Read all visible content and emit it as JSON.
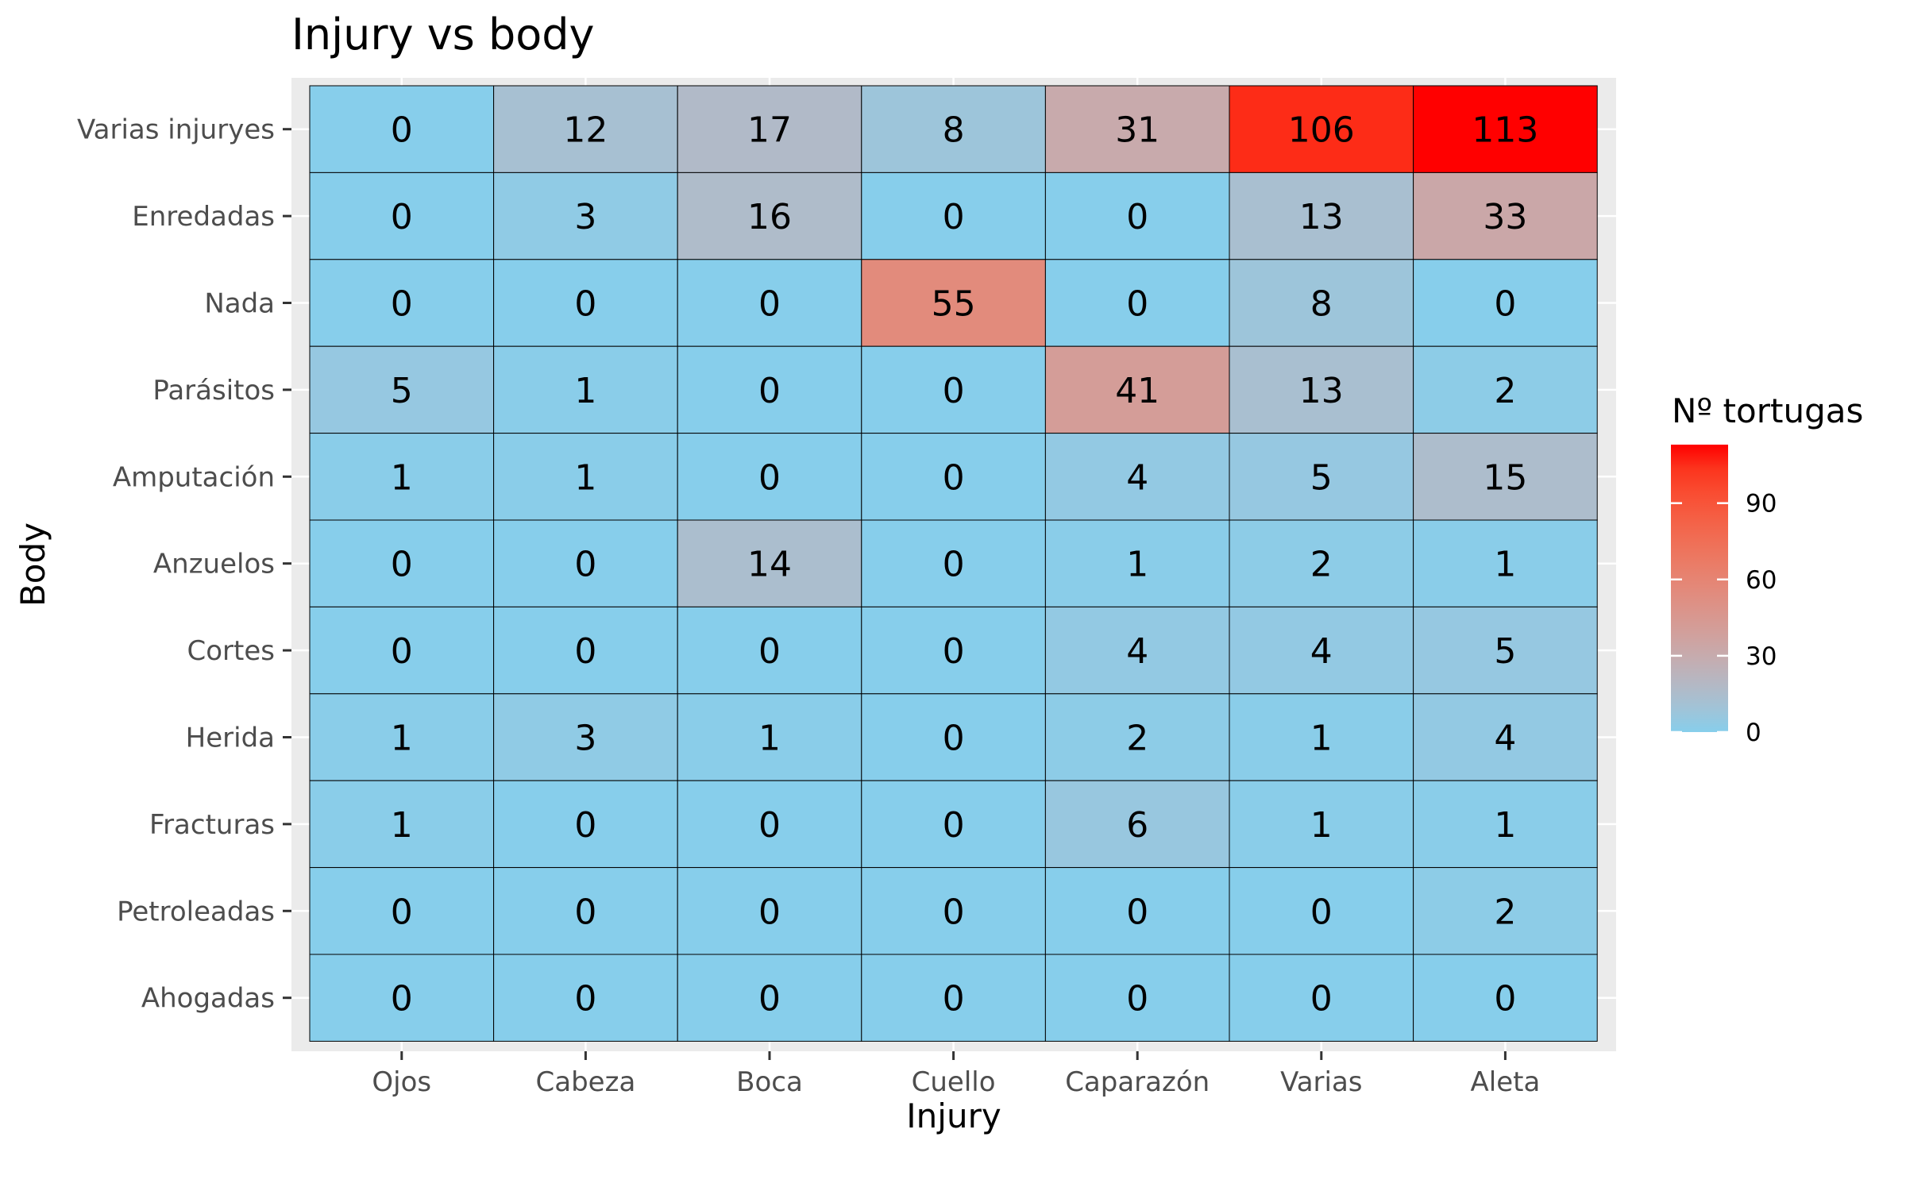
{
  "chart_data": {
    "type": "heatmap",
    "title": "Injury vs body",
    "xlabel": "Injury",
    "ylabel": "Body",
    "x_categories": [
      "Ojos",
      "Cabeza",
      "Boca",
      "Cuello",
      "Caparazón",
      "Varias",
      "Aleta"
    ],
    "y_categories": [
      "Varias injuryes",
      "Enredadas",
      "Nada",
      "Parásitos",
      "Amputación",
      "Anzuelos",
      "Cortes",
      "Herida",
      "Fracturas",
      "Petroleadas",
      "Ahogadas"
    ],
    "values": [
      [
        0,
        12,
        17,
        8,
        31,
        106,
        113
      ],
      [
        0,
        3,
        16,
        0,
        0,
        13,
        33
      ],
      [
        0,
        0,
        0,
        55,
        0,
        8,
        0
      ],
      [
        5,
        1,
        0,
        0,
        41,
        13,
        2
      ],
      [
        1,
        1,
        0,
        0,
        4,
        5,
        15
      ],
      [
        0,
        0,
        14,
        0,
        1,
        2,
        1
      ],
      [
        0,
        0,
        0,
        0,
        4,
        4,
        5
      ],
      [
        1,
        3,
        1,
        0,
        2,
        1,
        4
      ],
      [
        1,
        0,
        0,
        0,
        6,
        1,
        1
      ],
      [
        0,
        0,
        0,
        0,
        0,
        0,
        2
      ],
      [
        0,
        0,
        0,
        0,
        0,
        0,
        0
      ]
    ],
    "color_scale": {
      "low": "#87CEEB",
      "high": "#FF0000",
      "domain": [
        0,
        113
      ]
    },
    "legend": {
      "title": "Nº tortugas",
      "ticks": [
        0,
        30,
        60,
        90
      ],
      "position": "right"
    },
    "grid": true,
    "panel_background": "#EBEBEB",
    "cell_border_color": "#000000"
  }
}
